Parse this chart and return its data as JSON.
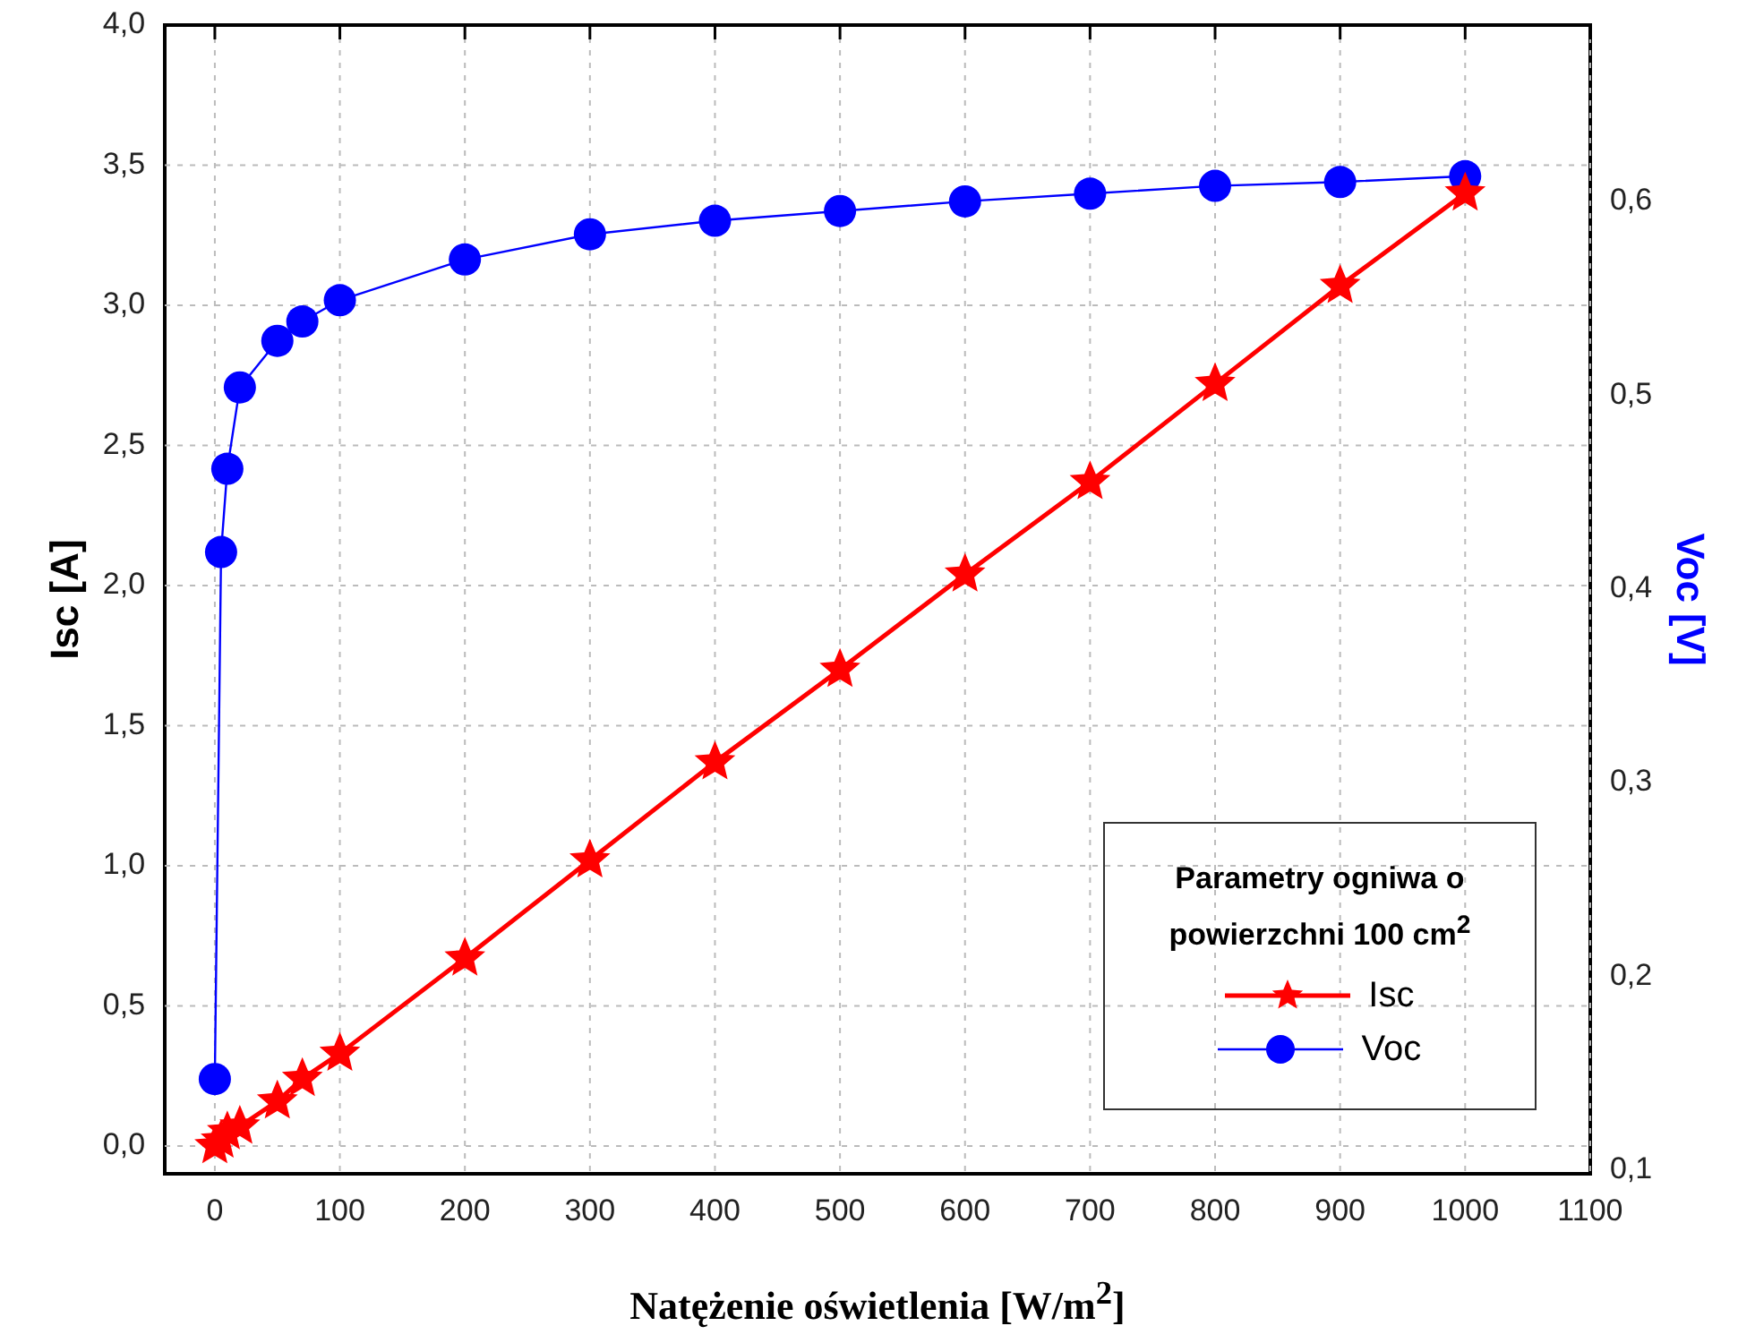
{
  "chart_data": {
    "type": "line",
    "x": [
      0,
      5,
      10,
      20,
      50,
      70,
      100,
      200,
      300,
      400,
      500,
      600,
      700,
      800,
      900,
      1000
    ],
    "series": [
      {
        "name": "Isc",
        "color": "#ff0000",
        "marker": "star",
        "values": [
          0.0,
          0.02,
          0.05,
          0.07,
          0.16,
          0.24,
          0.33,
          0.67,
          1.02,
          1.37,
          1.7,
          2.04,
          2.37,
          2.72,
          3.07,
          3.4
        ]
      },
      {
        "name": "Voc",
        "color": "#0000ff",
        "marker": "circle",
        "axis": "y2",
        "values": [
          0.147,
          0.419,
          0.462,
          0.504,
          0.528,
          0.538,
          0.549,
          0.57,
          0.583,
          0.59,
          0.595,
          0.6,
          0.604,
          0.608,
          0.61,
          0.613
        ]
      }
    ],
    "xlabel": "Natężenie oświetlenia [W/m$^{2}$]",
    "ylabel": "Isc [A]",
    "y2label": "Voc [V]",
    "legend_title": "Parametry ogniwa o powierzchni 100 cm$^{2}$",
    "xlim": [
      -40,
      1100
    ],
    "xticks": [
      0,
      100,
      200,
      300,
      400,
      500,
      600,
      700,
      800,
      900,
      1000,
      1100
    ],
    "ylim": [
      -0.1,
      4.0
    ],
    "yticks": [
      {
        "value": 0,
        "label": "0,0"
      },
      {
        "value": 0.5,
        "label": "0,5"
      },
      {
        "value": 1,
        "label": "1,0"
      },
      {
        "value": 1.5,
        "label": "1,5"
      },
      {
        "value": 2,
        "label": "2,0"
      },
      {
        "value": 2.5,
        "label": "2,5"
      },
      {
        "value": 3,
        "label": "3,0"
      },
      {
        "value": 3.5,
        "label": "3,5"
      },
      {
        "value": 4,
        "label": "4,0"
      }
    ],
    "y2lim": [
      0.098,
      0.691
    ],
    "y2ticks": [
      {
        "value": 0.1,
        "label": "0,1"
      },
      {
        "value": 0.2,
        "label": "0,2"
      },
      {
        "value": 0.3,
        "label": "0,3"
      },
      {
        "value": 0.4,
        "label": "0,4"
      },
      {
        "value": 0.5,
        "label": "0,5"
      },
      {
        "value": 0.6,
        "label": "0,6"
      }
    ],
    "grid": true,
    "legend": "bottom right",
    "line_style": "solid"
  }
}
